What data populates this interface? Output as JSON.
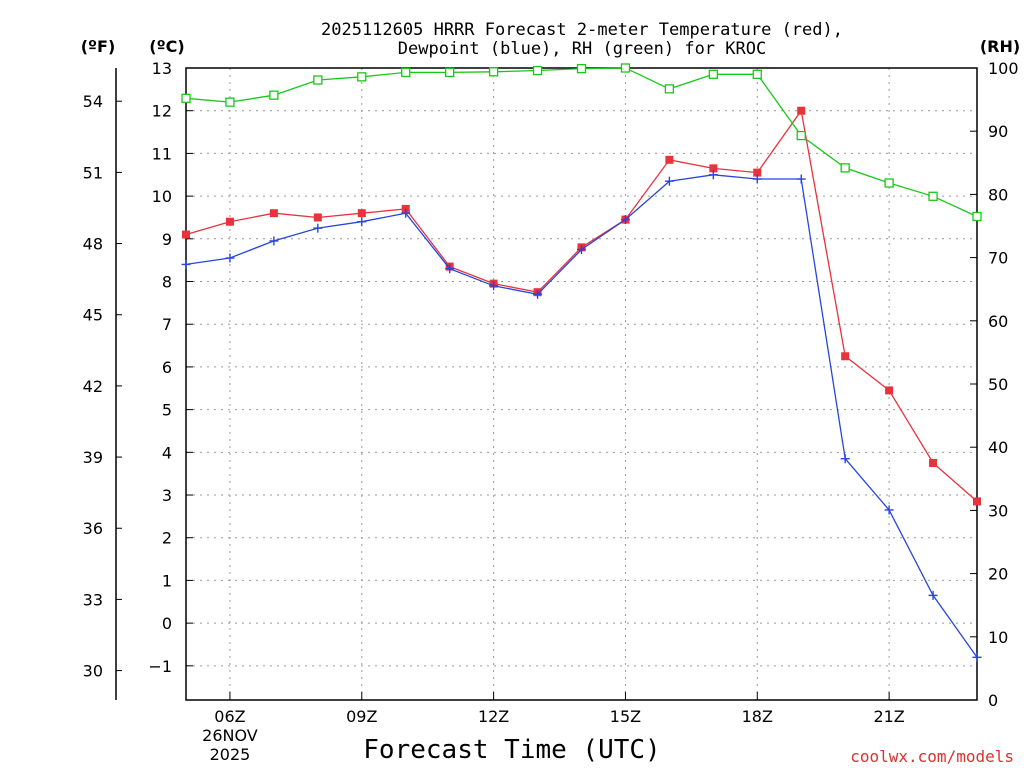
{
  "chart_data": {
    "type": "line",
    "title_line1": "2025112605 HRRR Forecast 2-meter Temperature (red),",
    "title_line2": "Dewpoint (blue), RH (green) for KROC",
    "xlabel": "Forecast Time (UTC)",
    "left_unit_f": "(ºF)",
    "left_unit_c": "(ºC)",
    "right_unit": "(RH)",
    "credit": "coolwx.com/models",
    "x_hours": [
      5,
      6,
      7,
      8,
      9,
      10,
      11,
      12,
      13,
      14,
      15,
      16,
      17,
      18,
      19,
      20,
      21,
      22,
      23
    ],
    "x_range": [
      5,
      23
    ],
    "x_ticks": [
      {
        "hour": 6,
        "label": "06Z",
        "sub1": "26NOV",
        "sub2": "2025"
      },
      {
        "hour": 9,
        "label": "09Z"
      },
      {
        "hour": 12,
        "label": "12Z"
      },
      {
        "hour": 15,
        "label": "15Z"
      },
      {
        "hour": 18,
        "label": "18Z"
      },
      {
        "hour": 21,
        "label": "21Z"
      }
    ],
    "celsius_range": [
      -1.8,
      13
    ],
    "celsius_ticks": [
      13,
      12,
      11,
      10,
      9,
      8,
      7,
      6,
      5,
      4,
      3,
      2,
      1,
      0,
      -1
    ],
    "fahrenheit_ticks": [
      54,
      51,
      48,
      45,
      42,
      39,
      36,
      33,
      30
    ],
    "rh_range": [
      0,
      100
    ],
    "rh_ticks": [
      100,
      90,
      80,
      70,
      60,
      50,
      40,
      30,
      20,
      10,
      0
    ],
    "series": [
      {
        "name": "Temperature",
        "unit": "C",
        "color": "#e8323c",
        "marker": "square-filled",
        "values": [
          9.1,
          9.4,
          9.6,
          9.5,
          9.6,
          9.7,
          8.35,
          7.95,
          7.75,
          8.8,
          9.45,
          10.85,
          10.65,
          10.55,
          12.0,
          6.25,
          5.45,
          3.75,
          2.85
        ]
      },
      {
        "name": "Dewpoint",
        "unit": "C",
        "color": "#2846dc",
        "marker": "plus",
        "values": [
          8.4,
          8.55,
          8.95,
          9.25,
          9.4,
          9.6,
          8.3,
          7.9,
          7.7,
          8.75,
          9.45,
          10.35,
          10.5,
          10.4,
          10.4,
          3.85,
          2.65,
          0.65,
          -0.8
        ]
      },
      {
        "name": "RH",
        "unit": "%",
        "color": "#18c818",
        "marker": "square-open",
        "values": [
          95.2,
          94.6,
          95.7,
          98.1,
          98.6,
          99.3,
          99.3,
          99.4,
          99.6,
          99.9,
          100.0,
          96.7,
          99.0,
          99.0,
          89.3,
          84.2,
          81.8,
          79.7,
          76.5
        ]
      }
    ]
  }
}
